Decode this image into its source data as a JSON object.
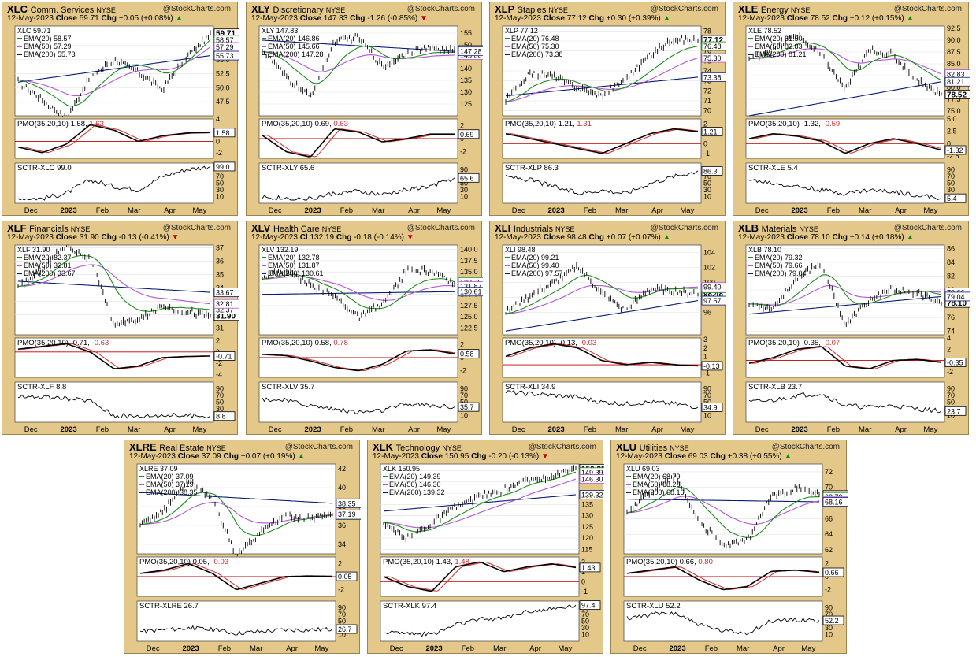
{
  "watermark": "@StockCharts.com",
  "date": "12-May-2023",
  "x_labels": [
    "Dec",
    "2023",
    "Feb",
    "Mar",
    "Apr",
    "May"
  ],
  "labels": {
    "close": "Close",
    "chg": "Chg",
    "ema20": "EMA(20)",
    "ema50": "EMA(50)",
    "ema200": "EMA(200)",
    "pmo": "PMO(35,20,10)",
    "sctr_prefix": "SCTR-"
  },
  "colors": {
    "price": "#000000",
    "ema20": "#1e8c1e",
    "ema50": "#b356d6",
    "ema200": "#0a1c78",
    "pmo": "#000000",
    "pmo_signal": "#d62a2a",
    "zero": "#c00000",
    "sctr": "#000000"
  },
  "panels": [
    {
      "symbol": "XLC",
      "name": "Comm. Services",
      "exchange": "NYSE",
      "close_label": "Close",
      "close": "59.71",
      "chg": "+0.05 (+0.08%)",
      "dir": "up",
      "last": "59.71",
      "ema20": "58.57",
      "ema50": "57.29",
      "ema200": "55.73",
      "pmo": "1.58",
      "pmo_sig": "1.63",
      "sctr": "99.0",
      "y_ticks": [
        "57.5",
        "55.0",
        "52.5",
        "50.0",
        "47.5"
      ],
      "pmo_ticks": [
        "4",
        "2",
        "0",
        "-2"
      ],
      "sctr_ticks": [
        "70",
        "50",
        "30",
        "10"
      ],
      "chart_data": {
        "type": "line",
        "y_range": [
          45,
          61
        ],
        "start": 51,
        "end": 59.71,
        "e20_end": 58.57,
        "e50_end": 57.29,
        "e200_start": 51,
        "e200_end": 55.73,
        "shape": [
          0,
          -0.35,
          -0.75,
          0.1,
          0.45,
          0.2,
          -0.15,
          0.5,
          0.95
        ],
        "pmo_range": [
          -3,
          4
        ],
        "pmo_shape": [
          -1,
          -2,
          -0.5,
          3,
          2,
          0,
          1,
          1.5,
          1.58
        ],
        "sctr_shape": [
          5,
          5,
          20,
          60,
          40,
          30,
          70,
          90,
          99
        ],
        "last_sctr": 99
      }
    },
    {
      "symbol": "XLY",
      "name": "Discretionary",
      "exchange": "NYSE",
      "close_label": "Close",
      "close": "147.83",
      "chg": "-1.26 (-0.85%)",
      "dir": "dn",
      "last": "147.83",
      "ema20": "146.86",
      "ema50": "145.66",
      "ema200": "147.28",
      "pmo": "0.69",
      "pmo_sig": "0.63",
      "sctr": "65.6",
      "y_ticks": [
        "155",
        "150",
        "145",
        "140",
        "135",
        "130",
        "125"
      ],
      "pmo_ticks": [
        "2",
        "0",
        "-2"
      ],
      "sctr_ticks": [
        "90",
        "70",
        "50",
        "30",
        "10"
      ],
      "chart_data": {
        "type": "line",
        "y_range": [
          120,
          158
        ],
        "start": 148,
        "end": 147.83,
        "e20_end": 146.86,
        "e50_end": 145.66,
        "e200_start": 152,
        "e200_end": 147.28,
        "shape": [
          0,
          -0.55,
          -0.95,
          0.2,
          0.3,
          -0.3,
          0,
          0.1,
          0.05
        ],
        "pmo_range": [
          -3,
          3
        ],
        "pmo_shape": [
          0.5,
          -2,
          -2.8,
          1.5,
          1,
          -0.5,
          0,
          0.7,
          0.69
        ],
        "sctr_shape": [
          10,
          5,
          3,
          20,
          25,
          15,
          30,
          40,
          65.6
        ],
        "last_sctr": 65.6
      }
    },
    {
      "symbol": "XLP",
      "name": "Staples",
      "exchange": "NYSE",
      "close_label": "Close",
      "close": "77.12",
      "chg": "+0.30 (+0.39%)",
      "dir": "up",
      "last": "77.12",
      "ema20": "76.48",
      "ema50": "75.30",
      "ema200": "73.38",
      "pmo": "1.21",
      "pmo_sig": "1.31",
      "sctr": "86.3",
      "y_ticks": [
        "78",
        "77",
        "76",
        "75",
        "74",
        "73",
        "72",
        "71",
        "70"
      ],
      "pmo_ticks": [
        "2",
        "1",
        "0",
        "-1"
      ],
      "sctr_ticks": [
        "70",
        "50",
        "30",
        "10"
      ],
      "chart_data": {
        "type": "line",
        "y_range": [
          69.5,
          78.5
        ],
        "start": 71,
        "end": 77.12,
        "e20_end": 76.48,
        "e50_end": 75.3,
        "e200_start": 71.5,
        "e200_end": 73.38,
        "shape": [
          0,
          0.5,
          0.4,
          0.1,
          -0.1,
          0.2,
          0.6,
          0.9,
          0.8
        ],
        "pmo_range": [
          -1.5,
          2.5
        ],
        "pmo_shape": [
          1,
          0.5,
          0,
          -0.5,
          -1,
          0,
          1,
          1.5,
          1.21
        ],
        "sctr_shape": [
          70,
          60,
          40,
          20,
          30,
          20,
          50,
          70,
          86.3
        ],
        "last_sctr": 86.3
      }
    },
    {
      "symbol": "XLE",
      "name": "Energy",
      "exchange": "NYSE",
      "close_label": "Close",
      "close": "78.52",
      "chg": "+0.12 (+0.15%)",
      "dir": "up",
      "last": "78.52",
      "ema20": "81.50",
      "ema50": "82.83",
      "ema200": "81.21",
      "pmo": "-1.32",
      "pmo_sig": "-0.59",
      "sctr": "5.4",
      "y_ticks": [
        "92.5",
        "90.0",
        "87.5",
        "85.0",
        "82.5",
        "80.0",
        "77.5",
        "75.0"
      ],
      "pmo_ticks": [
        "5.0",
        "2.5",
        "0",
        "-2.5"
      ],
      "sctr_ticks": [
        "90",
        "70",
        "50",
        "30",
        "10"
      ],
      "chart_data": {
        "type": "line",
        "y_range": [
          74,
          93
        ],
        "start": 86,
        "end": 78.52,
        "e20_end": 81.5,
        "e50_end": 82.83,
        "e200_start": 74,
        "e200_end": 81.21,
        "shape": [
          0,
          0.2,
          0.5,
          0.1,
          -0.6,
          0.2,
          0.1,
          -0.4,
          -0.7
        ],
        "pmo_range": [
          -3,
          5
        ],
        "pmo_shape": [
          1,
          2,
          1.5,
          0.5,
          -2,
          0,
          1,
          0,
          -1.32
        ],
        "sctr_shape": [
          60,
          50,
          40,
          30,
          20,
          30,
          25,
          15,
          5.4
        ],
        "last_sctr": 5.4
      }
    },
    {
      "symbol": "XLF",
      "name": "Financials",
      "exchange": "NYSE",
      "close_label": "Close",
      "close": "31.90",
      "chg": "-0.13 (-0.41%)",
      "dir": "dn",
      "last": "31.90",
      "ema20": "32.37",
      "ema50": "32.81",
      "ema200": "33.67",
      "pmo": "-0.71",
      "pmo_sig": "-0.63",
      "sctr": "8.8",
      "y_ticks": [
        "37",
        "36",
        "35",
        "34",
        "33",
        "32",
        "31"
      ],
      "pmo_ticks": [
        "2",
        "0",
        "-2",
        "-4"
      ],
      "sctr_ticks": [
        "90",
        "70",
        "50",
        "30",
        "10"
      ],
      "chart_data": {
        "type": "line",
        "y_range": [
          30.5,
          37.2
        ],
        "start": 34,
        "end": 31.9,
        "e20_end": 32.37,
        "e50_end": 32.81,
        "e200_start": 34.5,
        "e200_end": 33.67,
        "shape": [
          0,
          0.4,
          0.9,
          0.6,
          -0.7,
          -0.6,
          -0.3,
          -0.4,
          -0.5
        ],
        "pmo_range": [
          -4.5,
          2.5
        ],
        "pmo_shape": [
          0.5,
          1,
          1.5,
          0,
          -3,
          -2.5,
          -1,
          -0.8,
          -0.71
        ],
        "sctr_shape": [
          70,
          65,
          60,
          55,
          10,
          8,
          12,
          10,
          8.8
        ],
        "last_sctr": 8.8
      }
    },
    {
      "symbol": "XLV",
      "name": "Health Care",
      "exchange": "NYSE",
      "close_label": "Cl",
      "close": "132.19",
      "chg": "-0.18 (-0.14%)",
      "dir": "dn",
      "last": "132.19",
      "ema20": "132.78",
      "ema50": "131.87",
      "ema200": "130.61",
      "pmo": "0.58",
      "pmo_sig": "0.78",
      "sctr": "35.7",
      "y_ticks": [
        "140.0",
        "137.5",
        "135.0",
        "132.5",
        "130.0",
        "127.5",
        "125.0",
        "122.5"
      ],
      "pmo_ticks": [
        "2",
        "0",
        "-2"
      ],
      "sctr_ticks": [
        "90",
        "70",
        "50",
        "30",
        "10"
      ],
      "chart_data": {
        "type": "line",
        "y_range": [
          121,
          141
        ],
        "start": 134,
        "end": 132.19,
        "e20_end": 132.78,
        "e50_end": 131.87,
        "e200_start": 130,
        "e200_end": 130.61,
        "shape": [
          0,
          0.15,
          -0.1,
          -0.3,
          -0.7,
          -0.4,
          0.3,
          0.35,
          0.1
        ],
        "pmo_range": [
          -3,
          3
        ],
        "pmo_shape": [
          0.5,
          0.3,
          -0.5,
          -1.5,
          -2,
          -1,
          1,
          1.2,
          0.58
        ],
        "sctr_shape": [
          60,
          55,
          40,
          30,
          20,
          25,
          45,
          40,
          35.7
        ],
        "last_sctr": 35.7
      }
    },
    {
      "symbol": "XLI",
      "name": "Industrials",
      "exchange": "NYSE",
      "close_label": "Close",
      "close": "98.48",
      "chg": "+0.07 (+0.07%)",
      "dir": "up",
      "last": "98.48",
      "ema20": "99.21",
      "ema50": "99.40",
      "ema200": "97.57",
      "pmo": "-0.13",
      "pmo_sig": "-0.03",
      "sctr": "34.9",
      "y_ticks": [
        "104",
        "102",
        "100",
        "98",
        "96"
      ],
      "pmo_ticks": [
        "3",
        "2",
        "1",
        "0",
        "-1"
      ],
      "sctr_ticks": [
        "90",
        "70",
        "50",
        "30",
        "10"
      ],
      "chart_data": {
        "type": "line",
        "y_range": [
          93,
          105
        ],
        "start": 96,
        "end": 98.48,
        "e20_end": 99.21,
        "e50_end": 99.4,
        "e200_start": 93.5,
        "e200_end": 97.57,
        "shape": [
          0,
          0.3,
          0.5,
          0.8,
          0.2,
          -0.2,
          0.2,
          0.1,
          0
        ],
        "pmo_range": [
          -1.5,
          3.2
        ],
        "pmo_shape": [
          1,
          2,
          2.5,
          2,
          0.5,
          0,
          0.3,
          0,
          -0.13
        ],
        "sctr_shape": [
          80,
          75,
          70,
          65,
          50,
          45,
          50,
          45,
          34.9
        ],
        "last_sctr": 34.9
      }
    },
    {
      "symbol": "XLB",
      "name": "Materials",
      "exchange": "NYSE",
      "close_label": "Close",
      "close": "78.10",
      "chg": "+0.14 (+0.18%)",
      "dir": "up",
      "last": "78.10",
      "ema20": "79.32",
      "ema50": "79.66",
      "ema200": "79.04",
      "pmo": "-0.35",
      "pmo_sig": "-0.07",
      "sctr": "23.7",
      "y_ticks": [
        "86",
        "84",
        "82",
        "80",
        "78",
        "76",
        "74"
      ],
      "pmo_ticks": [
        "4",
        "2",
        "0",
        "-2"
      ],
      "sctr_ticks": [
        "90",
        "70",
        "50",
        "30",
        "10"
      ],
      "chart_data": {
        "type": "line",
        "y_range": [
          73.5,
          86.5
        ],
        "start": 78,
        "end": 78.1,
        "e20_end": 79.32,
        "e50_end": 79.66,
        "e200_start": 76.5,
        "e200_end": 79.04,
        "shape": [
          0,
          -0.1,
          0.5,
          0.8,
          -0.5,
          0,
          0.2,
          0.1,
          -0.1
        ],
        "pmo_range": [
          -3,
          4
        ],
        "pmo_shape": [
          -0.5,
          0.5,
          2,
          2.5,
          -1,
          -1.5,
          0,
          0.2,
          -0.35
        ],
        "sctr_shape": [
          50,
          55,
          70,
          75,
          40,
          35,
          40,
          30,
          23.7
        ],
        "last_sctr": 23.7
      }
    },
    {
      "symbol": "XLRE",
      "name": "Real Estate",
      "exchange": "NYSE",
      "close_label": "Close",
      "close": "37.09",
      "chg": "+0.07 (+0.19%)",
      "dir": "up",
      "last": "37.09",
      "ema20": "37.09",
      "ema50": "37.19",
      "ema200": "38.35",
      "pmo": "0.05",
      "pmo_sig": "-0.03",
      "sctr": "26.7",
      "y_ticks": [
        "42",
        "40",
        "38",
        "36",
        "34"
      ],
      "pmo_ticks": [
        "2",
        "0",
        "-2"
      ],
      "sctr_ticks": [
        "90",
        "70",
        "50",
        "30",
        "10"
      ],
      "chart_data": {
        "type": "line",
        "y_range": [
          33,
          42.5
        ],
        "start": 36,
        "end": 37.09,
        "e20_end": 37.09,
        "e50_end": 37.19,
        "e200_start": 39.5,
        "e200_end": 38.35,
        "shape": [
          0,
          0.3,
          0.9,
          0.5,
          -0.7,
          -0.2,
          0.1,
          0.05,
          0.1
        ],
        "pmo_range": [
          -3,
          3
        ],
        "pmo_shape": [
          0.5,
          1,
          2,
          0.5,
          -2,
          -1,
          0,
          0.1,
          0.05
        ],
        "sctr_shape": [
          20,
          25,
          30,
          25,
          15,
          20,
          25,
          25,
          26.7
        ],
        "last_sctr": 26.7
      }
    },
    {
      "symbol": "XLK",
      "name": "Technology",
      "exchange": "NYSE",
      "close_label": "Close",
      "close": "150.95",
      "chg": "-0.20 (-0.13%)",
      "dir": "dn",
      "last": "150.95",
      "ema20": "149.39",
      "ema50": "146.30",
      "ema200": "139.32",
      "pmo": "1.43",
      "pmo_sig": "1.48",
      "sctr": "97.4",
      "y_ticks": [
        "150",
        "145",
        "140",
        "135",
        "130",
        "125",
        "120",
        "115"
      ],
      "pmo_ticks": [
        "2",
        "1",
        "0",
        "-1"
      ],
      "sctr_ticks": [
        "90",
        "70",
        "50",
        "30",
        "10"
      ],
      "chart_data": {
        "type": "line",
        "y_range": [
          113,
          153
        ],
        "start": 126,
        "end": 150.95,
        "e20_end": 149.39,
        "e50_end": 146.3,
        "e200_start": 132,
        "e200_end": 139.32,
        "shape": [
          0,
          -0.3,
          0,
          0.3,
          0.5,
          0.6,
          0.8,
          0.85,
          1
        ],
        "pmo_range": [
          -1.5,
          2.5
        ],
        "pmo_shape": [
          0.5,
          -0.5,
          -1,
          1.5,
          2,
          1,
          1.5,
          1.8,
          1.43
        ],
        "sctr_shape": [
          20,
          15,
          10,
          40,
          55,
          60,
          80,
          85,
          97.4
        ],
        "last_sctr": 97.4
      }
    },
    {
      "symbol": "XLU",
      "name": "Utilities",
      "exchange": "NYSE",
      "close_label": "Close",
      "close": "69.03",
      "chg": "+0.38 (+0.55%)",
      "dir": "up",
      "last": "69.03",
      "ema20": "68.79",
      "ema50": "68.28",
      "ema200": "68.16",
      "pmo": "0.66",
      "pmo_sig": "0.80",
      "sctr": "52.2",
      "y_ticks": [
        "72",
        "70",
        "68",
        "66",
        "64",
        "62"
      ],
      "pmo_ticks": [
        "2",
        "0",
        "-2"
      ],
      "sctr_ticks": [
        "90",
        "70",
        "50",
        "30",
        "10"
      ],
      "chart_data": {
        "type": "line",
        "y_range": [
          61.5,
          73
        ],
        "start": 67,
        "end": 69.03,
        "e20_end": 68.79,
        "e50_end": 68.28,
        "e200_start": 68.5,
        "e200_end": 68.16,
        "shape": [
          0,
          0.4,
          0.7,
          -0.2,
          -0.7,
          -0.6,
          0.3,
          0.45,
          0.35
        ],
        "pmo_range": [
          -3,
          3
        ],
        "pmo_shape": [
          0.5,
          1,
          1.5,
          -0.5,
          -2,
          -1.5,
          0.8,
          1,
          0.66
        ],
        "sctr_shape": [
          60,
          70,
          75,
          40,
          20,
          15,
          50,
          55,
          52.2
        ],
        "last_sctr": 52.2
      }
    }
  ]
}
